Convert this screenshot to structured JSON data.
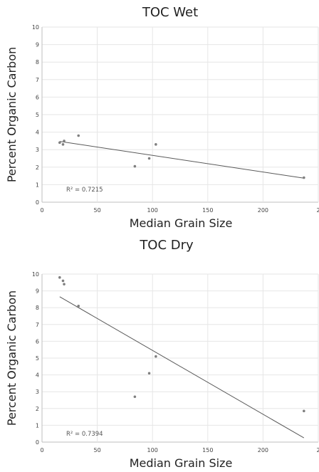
{
  "chart_data": [
    {
      "type": "scatter",
      "title": "TOC Wet",
      "xlabel": "Median Grain Size",
      "ylabel": "Percent Organic Carbon",
      "xlim": [
        0,
        250
      ],
      "ylim": [
        0,
        10
      ],
      "xticks": [
        "0",
        "50",
        "100",
        "150",
        "200",
        "2"
      ],
      "yticks": [
        "0",
        "1",
        "2",
        "3",
        "4",
        "5",
        "6",
        "7",
        "8",
        "9",
        "10"
      ],
      "grid": true,
      "points": [
        {
          "x": 16,
          "y": 3.4
        },
        {
          "x": 19,
          "y": 3.3
        },
        {
          "x": 20,
          "y": 3.5
        },
        {
          "x": 33,
          "y": 3.8
        },
        {
          "x": 84,
          "y": 2.05
        },
        {
          "x": 97,
          "y": 2.5
        },
        {
          "x": 103,
          "y": 3.3
        },
        {
          "x": 237,
          "y": 1.4
        }
      ],
      "trendline": {
        "x": [
          16,
          237
        ],
        "y": [
          3.47,
          1.37
        ]
      },
      "annotation": "R² = 0.7215"
    },
    {
      "type": "scatter",
      "title": "TOC Dry",
      "xlabel": "Median Grain Size",
      "ylabel": "Percent Organic Carbon",
      "xlim": [
        0,
        250
      ],
      "ylim": [
        0,
        10
      ],
      "xticks": [
        "0",
        "50",
        "100",
        "150",
        "200",
        "2"
      ],
      "yticks": [
        "0",
        "1",
        "2",
        "3",
        "4",
        "5",
        "6",
        "7",
        "8",
        "9",
        "10"
      ],
      "grid": true,
      "points": [
        {
          "x": 16,
          "y": 9.8
        },
        {
          "x": 19,
          "y": 9.6
        },
        {
          "x": 20,
          "y": 9.4
        },
        {
          "x": 33,
          "y": 8.1
        },
        {
          "x": 84,
          "y": 2.7
        },
        {
          "x": 97,
          "y": 4.1
        },
        {
          "x": 103,
          "y": 5.1
        },
        {
          "x": 237,
          "y": 1.85
        }
      ],
      "trendline": {
        "x": [
          16,
          237
        ],
        "y": [
          8.65,
          0.25
        ]
      },
      "annotation": "R² = 0.7394"
    }
  ]
}
